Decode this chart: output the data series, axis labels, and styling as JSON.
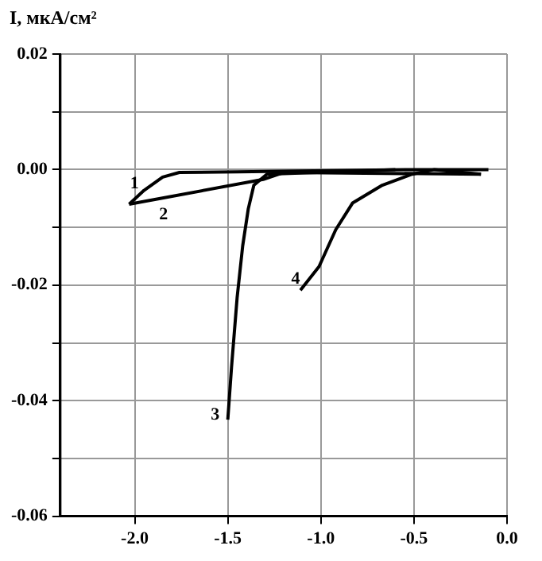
{
  "chart_data": {
    "type": "line",
    "ylabel": "I, мкА/см²",
    "xlim": [
      -2.4,
      0.0
    ],
    "ylim": [
      -0.06,
      0.02
    ],
    "xticks": [
      {
        "value": -2,
        "label": "-2.0"
      },
      {
        "value": -1.5,
        "label": "-1.5"
      },
      {
        "value": -1,
        "label": "-1.0"
      },
      {
        "value": -0.5,
        "label": "-0.5"
      },
      {
        "value": 0,
        "label": "0.0"
      }
    ],
    "yticks": [
      {
        "value": -0.06,
        "label": "-0.06"
      },
      {
        "value": -0.05,
        "label": null
      },
      {
        "value": -0.04,
        "label": "-0.04"
      },
      {
        "value": -0.03,
        "label": null
      },
      {
        "value": -0.02,
        "label": "-0.02"
      },
      {
        "value": -0.01,
        "label": null
      },
      {
        "value": 0,
        "label": "0.00"
      },
      {
        "value": 0.01,
        "label": null
      },
      {
        "value": 0.02,
        "label": "0.02"
      }
    ],
    "grid": true,
    "legend": false,
    "marker": "none",
    "line_style": "solid",
    "series": [
      {
        "color": "#000000",
        "x": [
          -2.03,
          -1.95,
          -1.85,
          -1.76,
          -1.45,
          -0.51,
          -0.1
        ],
        "values": [
          -0.006,
          -0.0036,
          -0.0013,
          -0.0005,
          -0.0004,
          0.0,
          0.0
        ]
      },
      {
        "color": "#000000",
        "x": [
          -2.03,
          -1.88,
          -1.31,
          -1.2,
          -0.14
        ],
        "values": [
          -0.006,
          -0.0051,
          -0.0017,
          -0.0005,
          -0.0008
        ]
      },
      {
        "color": "#000000",
        "x": [
          -1.5,
          -1.48,
          -1.45,
          -1.42,
          -1.39,
          -1.36,
          -1.29,
          -0.6
        ],
        "values": [
          -0.0433,
          -0.0342,
          -0.0222,
          -0.0132,
          -0.0068,
          -0.0027,
          -0.0008,
          0.0
        ]
      },
      {
        "color": "#000000",
        "x": [
          -1.11,
          -1.01,
          -0.92,
          -0.83,
          -0.67,
          -0.51,
          -0.39,
          -0.14
        ],
        "values": [
          -0.0209,
          -0.0168,
          -0.0104,
          -0.0058,
          -0.0027,
          -0.0008,
          0.0,
          -0.0008
        ]
      }
    ],
    "annotations": [
      {
        "text": "1",
        "x": -1.95,
        "y": -0.0036
      },
      {
        "text": "2",
        "x": -1.88,
        "y": -0.0051
      },
      {
        "text": "3",
        "x": -1.5,
        "y": -0.0433
      },
      {
        "text": "4",
        "x": -1.11,
        "y": -0.0209
      }
    ]
  }
}
